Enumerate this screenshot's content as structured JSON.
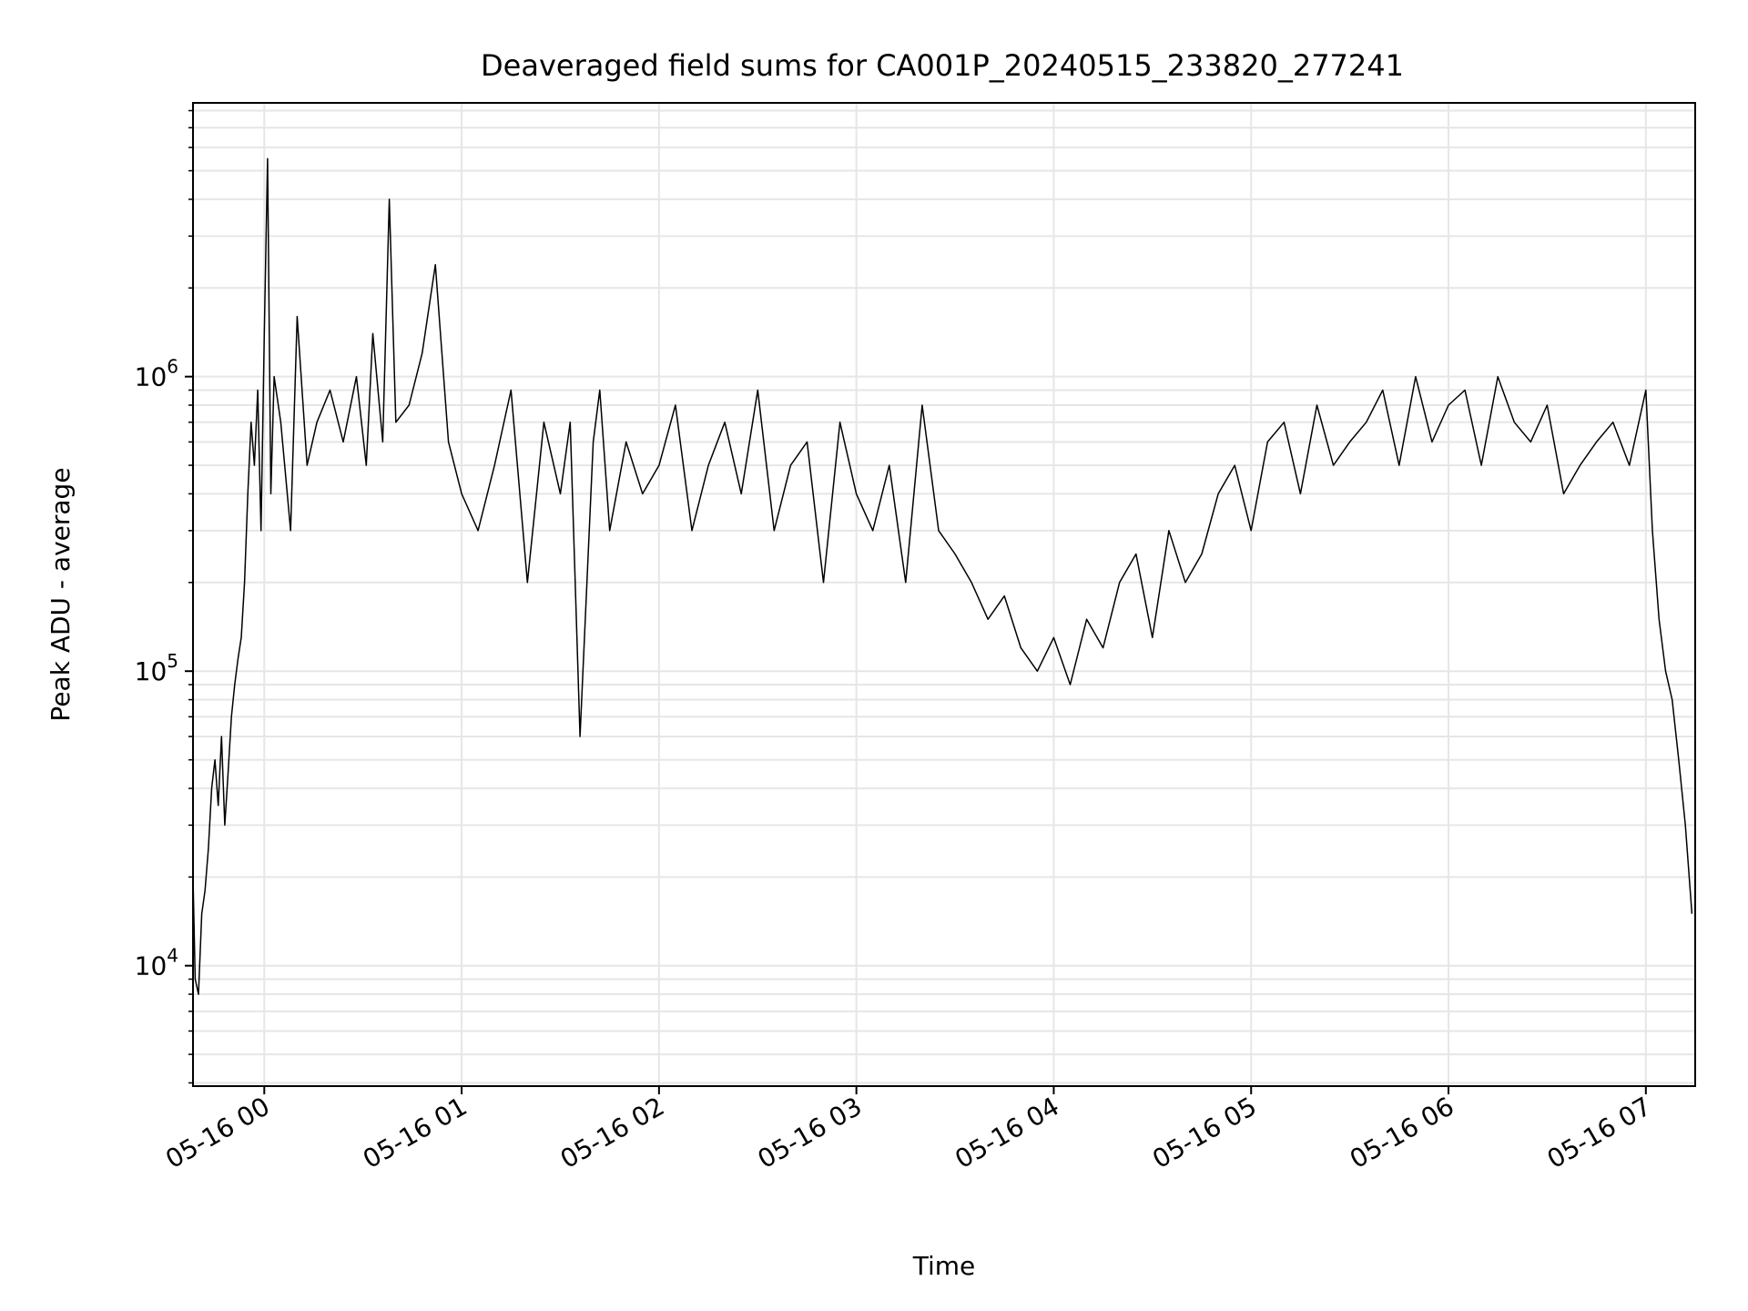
{
  "chart_data": {
    "type": "line",
    "title": "Deaveraged field sums for CA001P_20240515_233820_277241",
    "xlabel": "Time",
    "ylabel": "Peak ADU - average",
    "y_scale": "log",
    "xlim": [
      "2024-05-15 23:38:20",
      "2024-05-16 07:15:00"
    ],
    "ylim": [
      3900,
      8500000
    ],
    "x_ticks": [
      {
        "t": "2024-05-16 00:00",
        "label": "05-16 00"
      },
      {
        "t": "2024-05-16 01:00",
        "label": "05-16 01"
      },
      {
        "t": "2024-05-16 02:00",
        "label": "05-16 02"
      },
      {
        "t": "2024-05-16 03:00",
        "label": "05-16 03"
      },
      {
        "t": "2024-05-16 04:00",
        "label": "05-16 04"
      },
      {
        "t": "2024-05-16 05:00",
        "label": "05-16 05"
      },
      {
        "t": "2024-05-16 06:00",
        "label": "05-16 06"
      },
      {
        "t": "2024-05-16 07:00",
        "label": "05-16 07"
      }
    ],
    "y_ticks": [
      {
        "value": 10000,
        "base": "10",
        "exp": "4"
      },
      {
        "value": 100000,
        "base": "10",
        "exp": "5"
      },
      {
        "value": 1000000,
        "base": "10",
        "exp": "6"
      }
    ],
    "grid": true,
    "line_color": "#000000",
    "grid_color": "#e6e6e6",
    "series": [
      {
        "x": [
          "2024-05-15 23:38:20",
          "2024-05-15 23:39",
          "2024-05-15 23:40",
          "2024-05-15 23:41",
          "2024-05-15 23:42",
          "2024-05-15 23:43",
          "2024-05-15 23:44",
          "2024-05-15 23:45",
          "2024-05-15 23:46",
          "2024-05-15 23:47",
          "2024-05-15 23:48",
          "2024-05-15 23:49",
          "2024-05-15 23:50",
          "2024-05-15 23:51",
          "2024-05-15 23:52",
          "2024-05-15 23:53",
          "2024-05-15 23:54",
          "2024-05-15 23:55",
          "2024-05-15 23:56",
          "2024-05-15 23:57",
          "2024-05-15 23:58",
          "2024-05-15 23:59",
          "2024-05-16 00:00",
          "2024-05-16 00:01",
          "2024-05-16 00:02",
          "2024-05-16 00:03",
          "2024-05-16 00:05",
          "2024-05-16 00:08",
          "2024-05-16 00:10",
          "2024-05-16 00:13",
          "2024-05-16 00:16",
          "2024-05-16 00:20",
          "2024-05-16 00:24",
          "2024-05-16 00:28",
          "2024-05-16 00:31",
          "2024-05-16 00:33",
          "2024-05-16 00:36",
          "2024-05-16 00:38",
          "2024-05-16 00:40",
          "2024-05-16 00:44",
          "2024-05-16 00:48",
          "2024-05-16 00:52",
          "2024-05-16 00:56",
          "2024-05-16 01:00",
          "2024-05-16 01:05",
          "2024-05-16 01:10",
          "2024-05-16 01:15",
          "2024-05-16 01:20",
          "2024-05-16 01:25",
          "2024-05-16 01:30",
          "2024-05-16 01:33",
          "2024-05-16 01:36",
          "2024-05-16 01:40",
          "2024-05-16 01:42",
          "2024-05-16 01:45",
          "2024-05-16 01:50",
          "2024-05-16 01:55",
          "2024-05-16 02:00",
          "2024-05-16 02:05",
          "2024-05-16 02:10",
          "2024-05-16 02:15",
          "2024-05-16 02:20",
          "2024-05-16 02:25",
          "2024-05-16 02:30",
          "2024-05-16 02:35",
          "2024-05-16 02:40",
          "2024-05-16 02:45",
          "2024-05-16 02:50",
          "2024-05-16 02:55",
          "2024-05-16 03:00",
          "2024-05-16 03:05",
          "2024-05-16 03:10",
          "2024-05-16 03:15",
          "2024-05-16 03:20",
          "2024-05-16 03:25",
          "2024-05-16 03:30",
          "2024-05-16 03:35",
          "2024-05-16 03:40",
          "2024-05-16 03:45",
          "2024-05-16 03:50",
          "2024-05-16 03:55",
          "2024-05-16 04:00",
          "2024-05-16 04:05",
          "2024-05-16 04:10",
          "2024-05-16 04:15",
          "2024-05-16 04:20",
          "2024-05-16 04:25",
          "2024-05-16 04:30",
          "2024-05-16 04:35",
          "2024-05-16 04:40",
          "2024-05-16 04:45",
          "2024-05-16 04:50",
          "2024-05-16 04:55",
          "2024-05-16 05:00",
          "2024-05-16 05:05",
          "2024-05-16 05:10",
          "2024-05-16 05:15",
          "2024-05-16 05:20",
          "2024-05-16 05:25",
          "2024-05-16 05:30",
          "2024-05-16 05:35",
          "2024-05-16 05:40",
          "2024-05-16 05:45",
          "2024-05-16 05:50",
          "2024-05-16 05:55",
          "2024-05-16 06:00",
          "2024-05-16 06:05",
          "2024-05-16 06:10",
          "2024-05-16 06:15",
          "2024-05-16 06:20",
          "2024-05-16 06:25",
          "2024-05-16 06:30",
          "2024-05-16 06:35",
          "2024-05-16 06:40",
          "2024-05-16 06:45",
          "2024-05-16 06:50",
          "2024-05-16 06:55",
          "2024-05-16 07:00",
          "2024-05-16 07:02",
          "2024-05-16 07:04",
          "2024-05-16 07:06",
          "2024-05-16 07:08",
          "2024-05-16 07:10",
          "2024-05-16 07:12",
          "2024-05-16 07:14"
        ],
        "values": [
          20000,
          9000,
          8000,
          15000,
          18000,
          25000,
          40000,
          50000,
          35000,
          60000,
          30000,
          45000,
          70000,
          90000,
          110000,
          130000,
          200000,
          400000,
          700000,
          500000,
          900000,
          300000,
          1400000,
          5500000,
          400000,
          1000000,
          700000,
          300000,
          1600000,
          500000,
          700000,
          900000,
          600000,
          1000000,
          500000,
          1400000,
          600000,
          4000000,
          700000,
          800000,
          1200000,
          2400000,
          600000,
          400000,
          300000,
          500000,
          900000,
          200000,
          700000,
          400000,
          700000,
          60000,
          600000,
          900000,
          300000,
          600000,
          400000,
          500000,
          800000,
          300000,
          500000,
          700000,
          400000,
          900000,
          300000,
          500000,
          600000,
          200000,
          700000,
          400000,
          300000,
          500000,
          200000,
          800000,
          300000,
          250000,
          200000,
          150000,
          180000,
          120000,
          100000,
          130000,
          90000,
          150000,
          120000,
          200000,
          250000,
          130000,
          300000,
          200000,
          250000,
          400000,
          500000,
          300000,
          600000,
          700000,
          400000,
          800000,
          500000,
          600000,
          700000,
          900000,
          500000,
          1000000,
          600000,
          800000,
          900000,
          500000,
          1000000,
          700000,
          600000,
          800000,
          400000,
          500000,
          600000,
          700000,
          500000,
          900000,
          300000,
          150000,
          100000,
          80000,
          50000,
          30000,
          15000
        ]
      }
    ]
  }
}
